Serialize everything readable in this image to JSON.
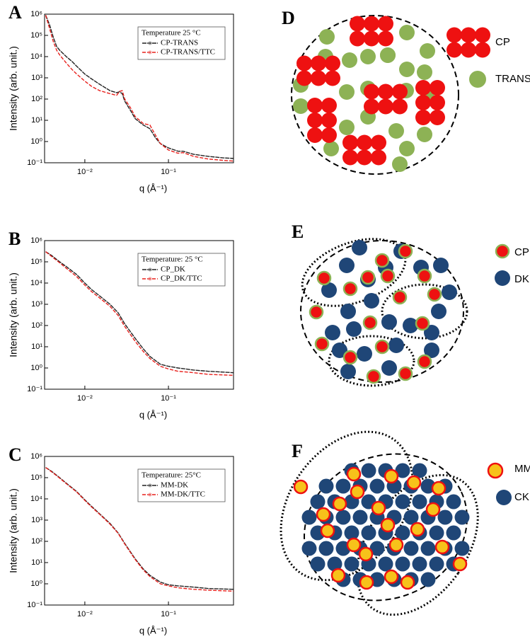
{
  "chart_data": [
    {
      "type": "line",
      "panel": "A",
      "ylabel": "Intensity (arb. unit.)",
      "xlabel": "q  (Å⁻¹)",
      "log_x": true,
      "log_y": true,
      "grid": false,
      "legend": "upper right",
      "legend_title": "Temperature 25 °C",
      "x": [
        0.0034,
        0.0038,
        0.0042,
        0.0046,
        0.005,
        0.006,
        0.007,
        0.008,
        0.01,
        0.012,
        0.015,
        0.02,
        0.024,
        0.026,
        0.028,
        0.03,
        0.035,
        0.04,
        0.05,
        0.06,
        0.07,
        0.08,
        0.1,
        0.13,
        0.15,
        0.2,
        0.3,
        0.45,
        0.6
      ],
      "series": [
        {
          "name": "CP-TRANS",
          "color": "#222222",
          "values": [
            900000,
            300000,
            80000,
            30000,
            20000,
            10000,
            6000,
            3500,
            1500,
            900,
            500,
            250,
            200,
            220,
            180,
            80,
            30,
            12,
            6,
            4,
            1.5,
            0.8,
            0.5,
            0.35,
            0.35,
            0.25,
            0.2,
            0.17,
            0.16
          ]
        },
        {
          "name": "CP-TRANS/TTC",
          "color": "#e8201c",
          "values": [
            900000,
            200000,
            50000,
            20000,
            12000,
            5000,
            2500,
            1500,
            700,
            400,
            250,
            180,
            150,
            230,
            250,
            100,
            40,
            15,
            7,
            6,
            2,
            0.8,
            0.4,
            0.28,
            0.3,
            0.2,
            0.15,
            0.13,
            0.12
          ]
        }
      ],
      "xlim": [
        0.0033,
        0.6
      ],
      "ylim": [
        0.1,
        1000000
      ],
      "xticks": [
        {
          "value": 0.01,
          "label": "10⁻²"
        },
        {
          "value": 0.1,
          "label": "10⁻¹"
        }
      ],
      "yticks": [
        {
          "value": 0.1,
          "label": "10⁻¹"
        },
        {
          "value": 1,
          "label": "10⁰"
        },
        {
          "value": 10,
          "label": "10¹"
        },
        {
          "value": 100,
          "label": "10²"
        },
        {
          "value": 1000,
          "label": "10³"
        },
        {
          "value": 10000,
          "label": "10⁴"
        },
        {
          "value": 100000,
          "label": "10⁵"
        },
        {
          "value": 1000000,
          "label": "10⁶"
        }
      ]
    },
    {
      "type": "line",
      "panel": "B",
      "ylabel": "Intensity (arb. unit.)",
      "xlabel": "q  (Å⁻¹)",
      "log_x": true,
      "log_y": true,
      "grid": false,
      "legend": "upper right",
      "legend_title": "Temperature: 25 °C",
      "x": [
        0.0034,
        0.004,
        0.005,
        0.006,
        0.008,
        0.01,
        0.012,
        0.015,
        0.02,
        0.025,
        0.03,
        0.04,
        0.05,
        0.06,
        0.08,
        0.1,
        0.13,
        0.2,
        0.3,
        0.6
      ],
      "series": [
        {
          "name": "CP_DK",
          "color": "#222222",
          "values": [
            300000,
            200000,
            100000,
            60000,
            25000,
            10000,
            5000,
            2500,
            1000,
            400,
            120,
            25,
            8,
            3.5,
            1.5,
            1.2,
            1.0,
            0.8,
            0.7,
            0.6
          ]
        },
        {
          "name": "CP_DK/TTC",
          "color": "#e8201c",
          "values": [
            300000,
            180000,
            90000,
            50000,
            20000,
            8000,
            4000,
            2000,
            800,
            300,
            90,
            18,
            6,
            2.8,
            1.2,
            0.9,
            0.7,
            0.6,
            0.5,
            0.45
          ]
        }
      ],
      "xlim": [
        0.0033,
        0.6
      ],
      "ylim": [
        0.1,
        1000000
      ],
      "xticks": [
        {
          "value": 0.01,
          "label": "10⁻²"
        },
        {
          "value": 0.1,
          "label": "10⁻¹"
        }
      ],
      "yticks": [
        {
          "value": 0.1,
          "label": "10⁻¹"
        },
        {
          "value": 1,
          "label": "10⁰"
        },
        {
          "value": 10,
          "label": "10¹"
        },
        {
          "value": 100,
          "label": "10²"
        },
        {
          "value": 1000,
          "label": "10³"
        },
        {
          "value": 10000,
          "label": "10⁴"
        },
        {
          "value": 100000,
          "label": "10⁵"
        },
        {
          "value": 1000000,
          "label": "10⁶"
        }
      ]
    },
    {
      "type": "line",
      "panel": "C",
      "ylabel": "Intensity (arb. unit.)",
      "xlabel": "q  (Å⁻¹)",
      "log_x": true,
      "log_y": true,
      "grid": false,
      "legend": "upper right",
      "legend_title": "Temperature: 25°C",
      "x": [
        0.0034,
        0.004,
        0.005,
        0.006,
        0.008,
        0.01,
        0.012,
        0.015,
        0.02,
        0.025,
        0.03,
        0.04,
        0.05,
        0.06,
        0.08,
        0.1,
        0.13,
        0.2,
        0.3,
        0.6
      ],
      "series": [
        {
          "name": "MM-DK",
          "color": "#222222",
          "values": [
            300000,
            200000,
            100000,
            55000,
            22000,
            9000,
            4500,
            2000,
            700,
            250,
            80,
            15,
            5,
            2.5,
            1.2,
            0.9,
            0.8,
            0.7,
            0.6,
            0.55
          ]
        },
        {
          "name": "MM-DK/TTC",
          "color": "#e8201c",
          "values": [
            300000,
            190000,
            95000,
            52000,
            21000,
            8500,
            4200,
            1900,
            650,
            240,
            75,
            14,
            4.5,
            2.2,
            1.0,
            0.8,
            0.65,
            0.55,
            0.5,
            0.45
          ]
        }
      ],
      "xlim": [
        0.0033,
        0.6
      ],
      "ylim": [
        0.1,
        1000000
      ],
      "xticks": [
        {
          "value": 0.01,
          "label": "10⁻²"
        },
        {
          "value": 0.1,
          "label": "10⁻¹"
        }
      ],
      "yticks": [
        {
          "value": 0.1,
          "label": "10⁻¹"
        },
        {
          "value": 1,
          "label": "10⁰"
        },
        {
          "value": 10,
          "label": "10¹"
        },
        {
          "value": 100,
          "label": "10²"
        },
        {
          "value": 1000,
          "label": "10³"
        },
        {
          "value": 10000,
          "label": "10⁴"
        },
        {
          "value": 100000,
          "label": "10⁵"
        },
        {
          "value": 1000000,
          "label": "10⁶"
        }
      ]
    }
  ],
  "diagrams": [
    {
      "panel": "D",
      "legend": [
        "CP",
        "TRANS"
      ]
    },
    {
      "panel": "E",
      "legend": [
        "CP",
        "DK"
      ]
    },
    {
      "panel": "F",
      "legend": [
        "MM",
        "CK"
      ]
    }
  ]
}
